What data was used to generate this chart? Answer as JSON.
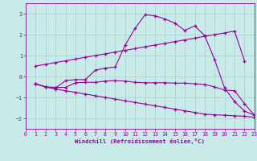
{
  "xlabel": "Windchill (Refroidissement éolien,°C)",
  "bg_color": "#c8eae8",
  "line_color": "#990099",
  "grid_color": "#aacccc",
  "xlim": [
    0,
    23
  ],
  "ylim": [
    -2.5,
    3.5
  ],
  "yticks": [
    -2,
    -1,
    0,
    1,
    2,
    3
  ],
  "xticks": [
    0,
    1,
    2,
    3,
    4,
    5,
    6,
    7,
    8,
    9,
    10,
    11,
    12,
    13,
    14,
    15,
    16,
    17,
    18,
    19,
    20,
    21,
    22,
    23
  ],
  "line1_x": [
    1,
    2,
    3,
    4,
    5,
    6,
    7,
    8,
    9,
    10,
    11,
    12,
    13,
    14,
    15,
    16,
    17,
    18,
    19,
    20,
    21,
    22
  ],
  "line1_y": [
    0.5,
    0.58,
    0.67,
    0.75,
    0.83,
    0.92,
    1.0,
    1.08,
    1.17,
    1.25,
    1.33,
    1.42,
    1.5,
    1.58,
    1.67,
    1.75,
    1.83,
    1.92,
    2.0,
    2.08,
    2.17,
    0.75
  ],
  "line2_x": [
    1,
    2,
    3,
    4,
    5,
    6,
    7,
    8,
    9,
    10,
    11,
    12,
    13,
    14,
    15,
    16,
    17,
    18,
    19,
    20,
    21,
    22,
    23
  ],
  "line2_y": [
    -0.35,
    -0.5,
    -0.55,
    -0.2,
    -0.15,
    -0.15,
    0.3,
    0.4,
    0.45,
    1.5,
    2.3,
    2.95,
    2.9,
    2.75,
    2.55,
    2.2,
    2.42,
    1.95,
    0.8,
    -0.55,
    -1.2,
    -1.65,
    -1.85
  ],
  "line3_x": [
    1,
    2,
    3,
    4,
    5,
    6,
    7,
    8,
    9,
    10,
    11,
    12,
    13,
    14,
    15,
    16,
    17,
    18,
    19,
    20,
    21,
    22,
    23
  ],
  "line3_y": [
    -0.35,
    -0.5,
    -0.52,
    -0.52,
    -0.3,
    -0.28,
    -0.28,
    -0.22,
    -0.2,
    -0.22,
    -0.28,
    -0.3,
    -0.3,
    -0.3,
    -0.32,
    -0.32,
    -0.35,
    -0.38,
    -0.5,
    -0.65,
    -0.68,
    -1.3,
    -1.85
  ],
  "line4_x": [
    1,
    2,
    3,
    4,
    5,
    6,
    7,
    8,
    9,
    10,
    11,
    12,
    13,
    14,
    15,
    16,
    17,
    18,
    19,
    20,
    21,
    22,
    23
  ],
  "line4_y": [
    -0.35,
    -0.5,
    -0.6,
    -0.68,
    -0.76,
    -0.84,
    -0.92,
    -1.0,
    -1.08,
    -1.16,
    -1.24,
    -1.32,
    -1.4,
    -1.48,
    -1.56,
    -1.64,
    -1.72,
    -1.8,
    -1.83,
    -1.85,
    -1.88,
    -1.9,
    -1.95
  ]
}
